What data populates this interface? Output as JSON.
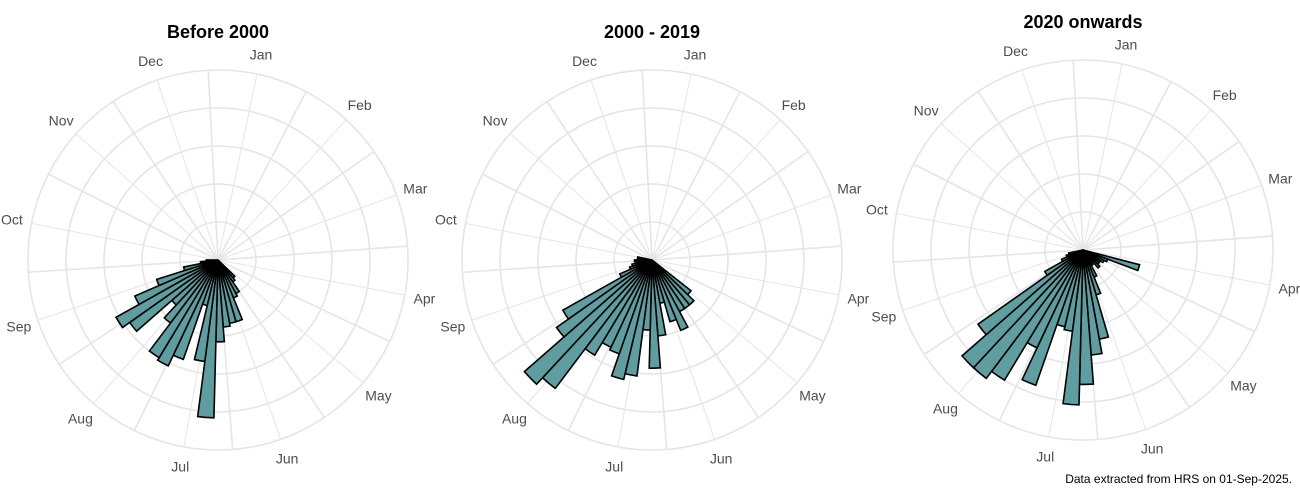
{
  "caption": "Data extracted from HRS on 01-Sep-2025.",
  "style": {
    "bar_fill": "#5f9ea0",
    "bar_stroke": "#000000",
    "grid_color": "#e5e5e5",
    "label_color": "#4d4d4d",
    "background": "#ffffff"
  },
  "month_labels": [
    "Jan",
    "Feb",
    "Mar",
    "Apr",
    "May",
    "Jun",
    "Jul",
    "Aug",
    "Sep",
    "Oct",
    "Nov",
    "Dec"
  ],
  "chart_data": [
    {
      "type": "bar",
      "polar": true,
      "title": "Before 2000",
      "x_unit": "day of year",
      "bin_width_days": 6,
      "grid_circles": 5,
      "rmax": 6.5,
      "bins": [
        {
          "day": 142,
          "value": 0.8
        },
        {
          "day": 148,
          "value": 0.9
        },
        {
          "day": 154,
          "value": 1.3
        },
        {
          "day": 160,
          "value": 1.4
        },
        {
          "day": 166,
          "value": 2.2
        },
        {
          "day": 172,
          "value": 2.2
        },
        {
          "day": 178,
          "value": 2.3
        },
        {
          "day": 184,
          "value": 2.8
        },
        {
          "day": 190,
          "value": 5.4
        },
        {
          "day": 196,
          "value": 3.5
        },
        {
          "day": 202,
          "value": 1.6
        },
        {
          "day": 208,
          "value": 3.6
        },
        {
          "day": 214,
          "value": 4.0
        },
        {
          "day": 220,
          "value": 3.9
        },
        {
          "day": 226,
          "value": 2.7
        },
        {
          "day": 232,
          "value": 2.1
        },
        {
          "day": 238,
          "value": 3.7
        },
        {
          "day": 244,
          "value": 4.0
        },
        {
          "day": 250,
          "value": 3.1
        },
        {
          "day": 256,
          "value": 2.2
        },
        {
          "day": 262,
          "value": 1.2
        },
        {
          "day": 268,
          "value": 0.6
        },
        {
          "day": 274,
          "value": 0.4
        }
      ]
    },
    {
      "type": "bar",
      "polar": true,
      "title": "2000 - 2019",
      "x_unit": "day of year",
      "bin_width_days": 6,
      "grid_circles": 5,
      "rmax": 6.5,
      "bins": [
        {
          "day": 136,
          "value": 1.7
        },
        {
          "day": 142,
          "value": 2.0
        },
        {
          "day": 148,
          "value": 2.0
        },
        {
          "day": 154,
          "value": 2.0
        },
        {
          "day": 160,
          "value": 2.6
        },
        {
          "day": 166,
          "value": 2.2
        },
        {
          "day": 172,
          "value": 1.5
        },
        {
          "day": 178,
          "value": 2.6
        },
        {
          "day": 184,
          "value": 3.7
        },
        {
          "day": 190,
          "value": 2.4
        },
        {
          "day": 196,
          "value": 4.0
        },
        {
          "day": 202,
          "value": 4.2
        },
        {
          "day": 208,
          "value": 3.4
        },
        {
          "day": 214,
          "value": 3.3
        },
        {
          "day": 220,
          "value": 3.8
        },
        {
          "day": 226,
          "value": 5.5
        },
        {
          "day": 232,
          "value": 5.8
        },
        {
          "day": 238,
          "value": 4.0
        },
        {
          "day": 244,
          "value": 3.5
        },
        {
          "day": 250,
          "value": 1.2
        },
        {
          "day": 256,
          "value": 0.8
        },
        {
          "day": 262,
          "value": 0.7
        },
        {
          "day": 274,
          "value": 0.6
        },
        {
          "day": 286,
          "value": 0.5
        }
      ]
    },
    {
      "type": "bar",
      "polar": true,
      "title": "2020 onwards",
      "x_unit": "day of year",
      "bin_width_days": 6,
      "grid_circles": 5,
      "rmax": 6.5,
      "bins": [
        {
          "day": 112,
          "value": 2.0
        },
        {
          "day": 118,
          "value": 0.9
        },
        {
          "day": 124,
          "value": 0.8
        },
        {
          "day": 130,
          "value": 0.7
        },
        {
          "day": 136,
          "value": 0.7
        },
        {
          "day": 142,
          "value": 0.8
        },
        {
          "day": 148,
          "value": 0.5
        },
        {
          "day": 154,
          "value": 0.6
        },
        {
          "day": 160,
          "value": 1.0
        },
        {
          "day": 166,
          "value": 1.6
        },
        {
          "day": 172,
          "value": 3.1
        },
        {
          "day": 178,
          "value": 3.6
        },
        {
          "day": 184,
          "value": 4.6
        },
        {
          "day": 190,
          "value": 5.3
        },
        {
          "day": 196,
          "value": 2.8
        },
        {
          "day": 202,
          "value": 2.7
        },
        {
          "day": 208,
          "value": 4.9
        },
        {
          "day": 214,
          "value": 3.7
        },
        {
          "day": 220,
          "value": 5.2
        },
        {
          "day": 226,
          "value": 5.5
        },
        {
          "day": 232,
          "value": 5.5
        },
        {
          "day": 238,
          "value": 4.4
        },
        {
          "day": 244,
          "value": 1.5
        },
        {
          "day": 250,
          "value": 0.8
        },
        {
          "day": 256,
          "value": 0.6
        },
        {
          "day": 262,
          "value": 0.5
        }
      ]
    }
  ]
}
